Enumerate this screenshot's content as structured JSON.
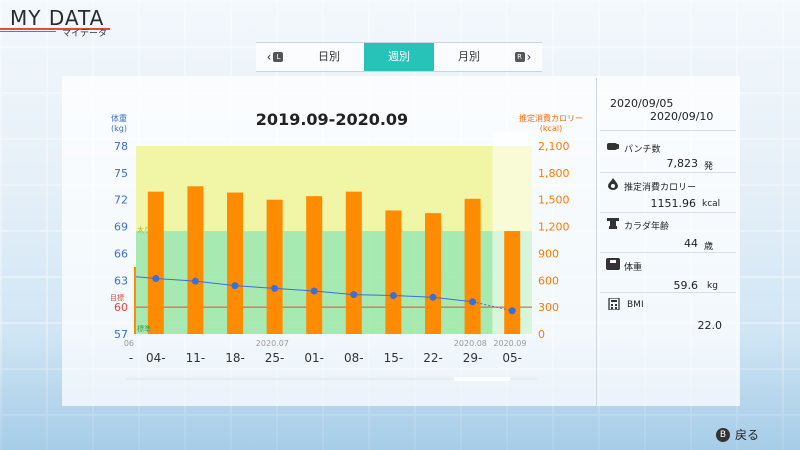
{
  "header": {
    "title": "MY DATA",
    "subtitle": "マイデータ"
  },
  "tabs": {
    "left_button": "L",
    "right_button": "R",
    "items": [
      {
        "label": "日別",
        "active": false
      },
      {
        "label": "週別",
        "active": true
      },
      {
        "label": "月別",
        "active": false
      }
    ]
  },
  "chart_data": {
    "type": "bar",
    "title": "2019.09-2020.09",
    "y_left": {
      "label": "体重",
      "unit": "(kg)",
      "range": [
        57,
        78
      ],
      "ticks": [
        "78",
        "75",
        "72",
        "69",
        "66",
        "63",
        "60",
        "57"
      ]
    },
    "y_right": {
      "label": "推定消費カロリー",
      "unit": "(kcal)",
      "range": [
        0,
        2100
      ],
      "ticks": [
        "2,100",
        "1,800",
        "1,500",
        "1,200",
        "900",
        "600",
        "300",
        "0"
      ]
    },
    "target_label": "目標",
    "zone_labels": {
      "upper": "太り",
      "lower": "標準"
    },
    "categories": [
      "04-",
      "11-",
      "18-",
      "25-",
      "01-",
      "08-",
      "15-",
      "22-",
      "29-",
      "05-"
    ],
    "month_labels": [
      {
        "text": "06",
        "index": -1
      },
      {
        "text": "2020.07",
        "index": 3
      },
      {
        "text": "2020.08",
        "index": 8
      },
      {
        "text": "2020.09",
        "index": 9
      }
    ],
    "first_tick_label": "-",
    "series": [
      {
        "name": "推定消費カロリー",
        "type": "bar",
        "values": [
          1590,
          1650,
          1580,
          1500,
          1540,
          1590,
          1380,
          1350,
          1510,
          1150
        ]
      },
      {
        "name": "体重",
        "type": "line",
        "values": [
          63.2,
          62.9,
          62.4,
          62.1,
          61.8,
          61.4,
          61.3,
          61.1,
          60.6,
          59.6
        ]
      }
    ],
    "target_weight": 60,
    "zone_bounds": {
      "upper": 68.5,
      "lower": 57
    },
    "colors": {
      "bar": "#ff8c00",
      "line": "#3a6fd8",
      "upper_zone": "#eef59b",
      "lower_zone": "#9ee8a8",
      "target": "#e34a3a"
    }
  },
  "summary": {
    "date_from": "2020/09/05",
    "date_to": "2020/09/10",
    "items": [
      {
        "icon": "punch-icon",
        "label": "パンチ数",
        "value": "7,823",
        "unit": "発"
      },
      {
        "icon": "flame-icon",
        "label": "推定消費カロリー",
        "value": "1151.96",
        "unit": "kcal"
      },
      {
        "icon": "body-icon",
        "label": "カラダ年齢",
        "value": "44",
        "unit": "歳"
      },
      {
        "icon": "scale-icon",
        "label": "体重",
        "value": "59.6",
        "unit": "kg"
      },
      {
        "icon": "calculator-icon",
        "label": "BMI",
        "value": "22.0",
        "unit": ""
      }
    ]
  },
  "footer": {
    "button": "B",
    "label": "戻る"
  }
}
